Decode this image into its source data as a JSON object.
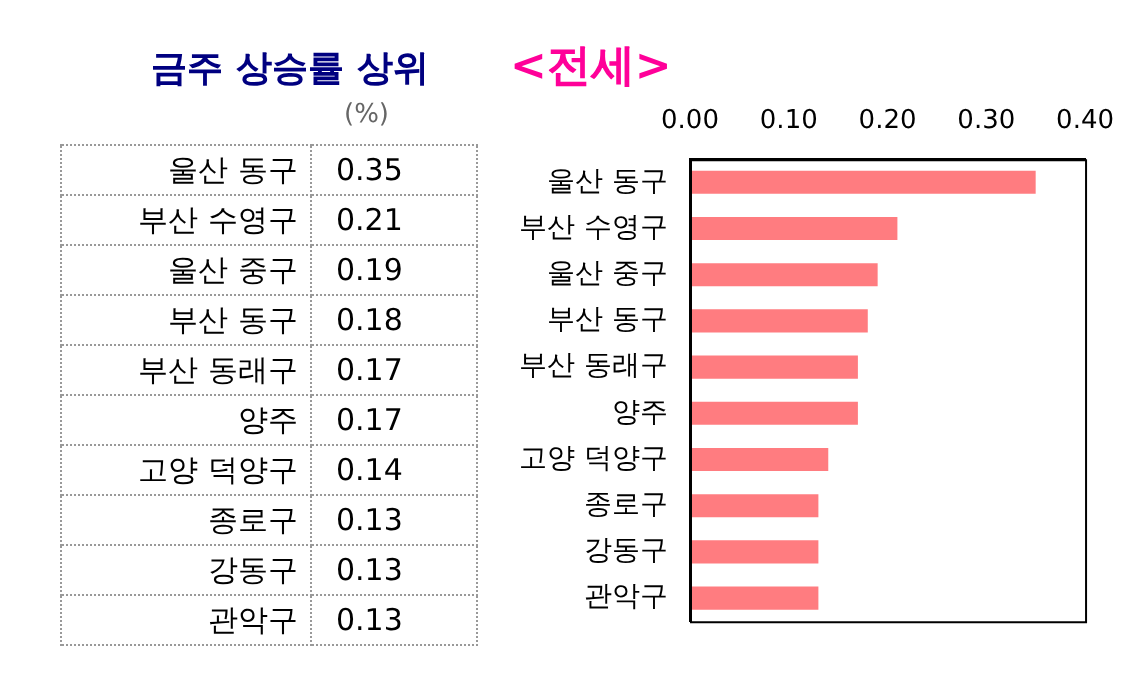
{
  "chart_data": {
    "type": "bar",
    "orientation": "horizontal",
    "title": "금주 상승률 상위",
    "subtitle": "<전세>",
    "annotations": [
      "(%)"
    ],
    "categories": [
      "울산 동구",
      "부산 수영구",
      "울산 중구",
      "부산 동구",
      "부산 동래구",
      "양주",
      "고양 덕양구",
      "종로구",
      "강동구",
      "관악구"
    ],
    "values": [
      0.35,
      0.21,
      0.19,
      0.18,
      0.17,
      0.17,
      0.14,
      0.13,
      0.13,
      0.13
    ],
    "value_labels": [
      "0.35",
      "0.21",
      "0.19",
      "0.18",
      "0.17",
      "0.17",
      "0.14",
      "0.13",
      "0.13",
      "0.13"
    ],
    "color": "#ff7c80",
    "xlim": [
      0,
      0.4
    ],
    "xticks": [
      {
        "value": 0,
        "label": "0.00"
      },
      {
        "value": 0.1,
        "label": "0.10"
      },
      {
        "value": 0.2,
        "label": "0.20"
      },
      {
        "value": 0.3,
        "label": "0.30"
      },
      {
        "value": 0.4,
        "label": "0.40"
      }
    ],
    "grid": false,
    "legend": false
  }
}
